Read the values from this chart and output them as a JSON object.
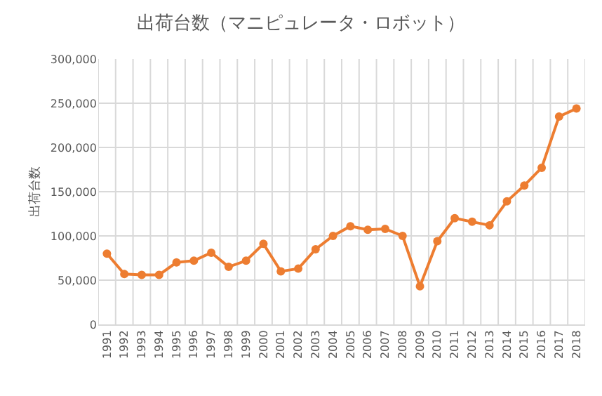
{
  "chart_data": {
    "type": "line",
    "title": "出荷台数（マニピュレータ・ロボット）",
    "ylabel": "出荷台数",
    "categories": [
      "1991",
      "1992",
      "1993",
      "1994",
      "1995",
      "1996",
      "1997",
      "1998",
      "1999",
      "2000",
      "2001",
      "2002",
      "2003",
      "2004",
      "2005",
      "2006",
      "2007",
      "2008",
      "2009",
      "2010",
      "2011",
      "2012",
      "2013",
      "2014",
      "2015",
      "2016",
      "2017",
      "2018"
    ],
    "series": [
      {
        "color": "#ed7d31",
        "values": [
          80000,
          57000,
          56000,
          56000,
          70000,
          72000,
          81000,
          65000,
          72000,
          91000,
          60000,
          63000,
          85000,
          100000,
          111000,
          107000,
          108000,
          100000,
          43000,
          94000,
          120000,
          116000,
          112000,
          139000,
          157000,
          177000,
          235000,
          244000
        ]
      }
    ],
    "ylim": [
      0,
      300000
    ],
    "yticks": [
      {
        "value": 0,
        "label": "0"
      },
      {
        "value": 50000,
        "label": "50,000"
      },
      {
        "value": 100000,
        "label": "100,000"
      },
      {
        "value": 150000,
        "label": "150,000"
      },
      {
        "value": 200000,
        "label": "200,000"
      },
      {
        "value": 250000,
        "label": "250,000"
      },
      {
        "value": 300000,
        "label": "300,000"
      }
    ],
    "grid": true,
    "marker": "circle",
    "line_style": "solid"
  }
}
